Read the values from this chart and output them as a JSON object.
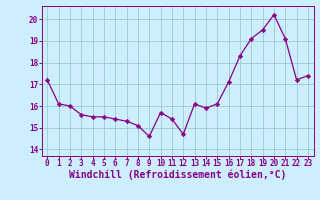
{
  "x": [
    0,
    1,
    2,
    3,
    4,
    5,
    6,
    7,
    8,
    9,
    10,
    11,
    12,
    13,
    14,
    15,
    16,
    17,
    18,
    19,
    20,
    21,
    22,
    23
  ],
  "y": [
    17.2,
    16.1,
    16.0,
    15.6,
    15.5,
    15.5,
    15.4,
    15.3,
    15.1,
    14.6,
    15.7,
    15.4,
    14.7,
    16.1,
    15.9,
    16.1,
    17.1,
    18.3,
    19.1,
    19.5,
    20.2,
    19.1,
    17.2,
    17.4
  ],
  "line_color": "#880088",
  "marker": "D",
  "marker_size": 2.2,
  "bg_color": "#cceeff",
  "grid_color": "#99cccc",
  "xlabel": "Windchill (Refroidissement éolien,°C)",
  "ylabel_ticks": [
    14,
    15,
    16,
    17,
    18,
    19,
    20
  ],
  "xlabel_ticks": [
    0,
    1,
    2,
    3,
    4,
    5,
    6,
    7,
    8,
    9,
    10,
    11,
    12,
    13,
    14,
    15,
    16,
    17,
    18,
    19,
    20,
    21,
    22,
    23
  ],
  "ylim": [
    13.7,
    20.6
  ],
  "xlim": [
    -0.5,
    23.5
  ],
  "font_color": "#880088",
  "tick_fontsize": 5.5,
  "label_fontsize": 7.0
}
